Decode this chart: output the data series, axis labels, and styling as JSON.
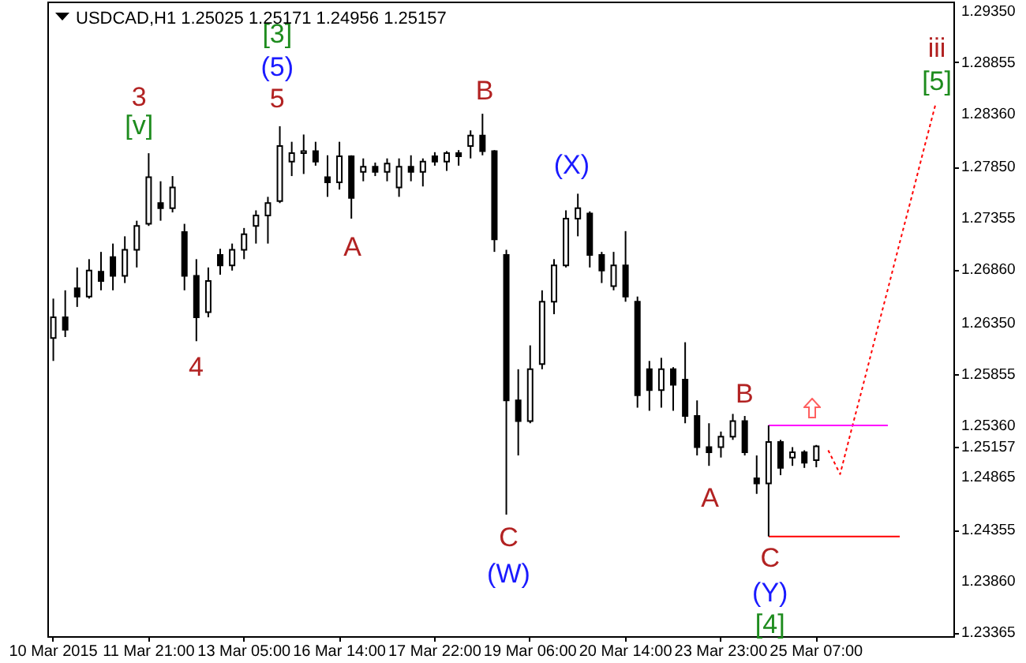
{
  "chart_data": {
    "type": "candlestick",
    "title": "USDCAD,H1  1.25025 1.25171 1.24956 1.25157",
    "color": "#000000",
    "categories": [
      "10 Mar 2015",
      null,
      null,
      null,
      null,
      null,
      null,
      null,
      "11 Mar 21:00",
      null,
      null,
      null,
      null,
      null,
      null,
      null,
      "13 Mar 05:00",
      null,
      null,
      null,
      null,
      null,
      null,
      null,
      "16 Mar 14:00",
      null,
      null,
      null,
      null,
      null,
      null,
      null,
      "17 Mar 22:00",
      null,
      null,
      null,
      null,
      null,
      null,
      null,
      "19 Mar 06:00",
      null,
      null,
      null,
      null,
      null,
      null,
      null,
      "20 Mar 14:00",
      null,
      null,
      null,
      null,
      null,
      null,
      null,
      "23 Mar 23:00",
      null,
      null,
      null,
      null,
      null,
      null,
      null,
      "25 Mar 07:00",
      null,
      null,
      null,
      null,
      null,
      null,
      null,
      null,
      null,
      null,
      null
    ],
    "ohlc": [
      [
        1.262,
        1.2658,
        1.2598,
        1.264
      ],
      [
        1.264,
        1.2666,
        1.2621,
        1.2628
      ],
      [
        1.2668,
        1.2688,
        1.265,
        1.266
      ],
      [
        1.266,
        1.2696,
        1.2658,
        1.2685
      ],
      [
        1.2684,
        1.2703,
        1.2666,
        1.2675
      ],
      [
        1.2698,
        1.2711,
        1.2666,
        1.268
      ],
      [
        1.268,
        1.2718,
        1.2673,
        1.2705
      ],
      [
        1.2705,
        1.2733,
        1.2688,
        1.2728
      ],
      [
        1.273,
        1.2798,
        1.2728,
        1.2775
      ],
      [
        1.275,
        1.2771,
        1.2733,
        1.2745
      ],
      [
        1.2745,
        1.2776,
        1.2741,
        1.2765
      ],
      [
        1.2722,
        1.273,
        1.2666,
        1.268
      ],
      [
        1.268,
        1.2696,
        1.2617,
        1.264
      ],
      [
        1.2645,
        1.2688,
        1.264,
        1.2675
      ],
      [
        1.27,
        1.2706,
        1.2681,
        1.269
      ],
      [
        1.269,
        1.2711,
        1.2685,
        1.2705
      ],
      [
        1.2705,
        1.2726,
        1.2696,
        1.272
      ],
      [
        1.2728,
        1.2743,
        1.2711,
        1.2738
      ],
      [
        1.2738,
        1.2756,
        1.2711,
        1.275
      ],
      [
        1.2752,
        1.2824,
        1.275,
        1.2805
      ],
      [
        1.279,
        1.2809,
        1.2776,
        1.2798
      ],
      [
        1.2798,
        1.2816,
        1.2778,
        1.28
      ],
      [
        1.28,
        1.2809,
        1.2786,
        1.279
      ],
      [
        1.2775,
        1.2796,
        1.2756,
        1.277
      ],
      [
        1.277,
        1.2809,
        1.2763,
        1.2795
      ],
      [
        1.2795,
        1.2796,
        1.2735,
        1.2755
      ],
      [
        1.278,
        1.2793,
        1.2771,
        1.2785
      ],
      [
        1.2785,
        1.2789,
        1.2776,
        1.278
      ],
      [
        1.278,
        1.2793,
        1.2771,
        1.2788
      ],
      [
        1.2765,
        1.2793,
        1.2756,
        1.2785
      ],
      [
        1.2785,
        1.2796,
        1.2771,
        1.278
      ],
      [
        1.278,
        1.2793,
        1.2766,
        1.279
      ],
      [
        1.2795,
        1.2799,
        1.2786,
        1.279
      ],
      [
        1.279,
        1.28,
        1.2781,
        1.2798
      ],
      [
        1.2798,
        1.2801,
        1.2786,
        1.2795
      ],
      [
        1.2805,
        1.282,
        1.2793,
        1.2815
      ],
      [
        1.2815,
        1.2836,
        1.2796,
        1.28
      ],
      [
        1.28,
        1.2801,
        1.2703,
        1.2715
      ],
      [
        1.27,
        1.2705,
        1.245,
        1.256
      ],
      [
        1.256,
        1.259,
        1.2507,
        1.254
      ],
      [
        1.254,
        1.2613,
        1.2538,
        1.259
      ],
      [
        1.2595,
        1.2666,
        1.259,
        1.2655
      ],
      [
        1.2655,
        1.2696,
        1.2643,
        1.269
      ],
      [
        1.269,
        1.2743,
        1.2688,
        1.2735
      ],
      [
        1.2735,
        1.2759,
        1.2718,
        1.2745
      ],
      [
        1.274,
        1.2742,
        1.2688,
        1.27
      ],
      [
        1.27,
        1.2703,
        1.2673,
        1.2685
      ],
      [
        1.267,
        1.2703,
        1.2666,
        1.269
      ],
      [
        1.269,
        1.2723,
        1.2655,
        1.266
      ],
      [
        1.2655,
        1.266,
        1.2553,
        1.2565
      ],
      [
        1.259,
        1.2598,
        1.255,
        1.257
      ],
      [
        1.257,
        1.2601,
        1.2553,
        1.259
      ],
      [
        1.259,
        1.2592,
        1.255,
        1.2575
      ],
      [
        1.258,
        1.2616,
        1.2538,
        1.2545
      ],
      [
        1.2545,
        1.256,
        1.2507,
        1.2515
      ],
      [
        1.2515,
        1.2538,
        1.2497,
        1.251
      ],
      [
        1.2515,
        1.253,
        1.2505,
        1.2525
      ],
      [
        1.2525,
        1.2547,
        1.2522,
        1.254
      ],
      [
        1.254,
        1.2545,
        1.2507,
        1.251
      ],
      [
        1.2485,
        1.2507,
        1.247,
        1.248
      ],
      [
        1.248,
        1.2536,
        1.2429,
        1.252
      ],
      [
        1.252,
        1.2522,
        1.2488,
        1.2495
      ],
      [
        1.2505,
        1.2515,
        1.2497,
        1.251
      ],
      [
        1.251,
        1.2512,
        1.2495,
        1.25
      ],
      [
        1.25025,
        1.25171,
        1.24956,
        1.25157
      ],
      null,
      null,
      null,
      null,
      null,
      null,
      null,
      null,
      null,
      null,
      null
    ],
    "series": [
      {
        "type": "line",
        "color": "#ff0000",
        "line_style": "dotted",
        "values": [
          null,
          null,
          null,
          null,
          null,
          null,
          null,
          null,
          null,
          null,
          null,
          null,
          null,
          null,
          null,
          null,
          null,
          null,
          null,
          null,
          null,
          null,
          null,
          null,
          null,
          null,
          null,
          null,
          null,
          null,
          null,
          null,
          null,
          null,
          null,
          null,
          null,
          null,
          null,
          null,
          null,
          null,
          null,
          null,
          null,
          null,
          null,
          null,
          null,
          null,
          null,
          null,
          null,
          null,
          null,
          null,
          null,
          null,
          null,
          null,
          null,
          null,
          null,
          null,
          null,
          1.2512,
          1.2489,
          1.2534,
          1.2578,
          1.2623,
          1.2667,
          1.2712,
          1.2756,
          1.2801,
          1.2845,
          null
        ]
      },
      {
        "type": "line",
        "color": "#ff00ff",
        "values": [
          null,
          null,
          null,
          null,
          null,
          null,
          null,
          null,
          null,
          null,
          null,
          null,
          null,
          null,
          null,
          null,
          null,
          null,
          null,
          null,
          null,
          null,
          null,
          null,
          null,
          null,
          null,
          null,
          null,
          null,
          null,
          null,
          null,
          null,
          null,
          null,
          null,
          null,
          null,
          null,
          null,
          null,
          null,
          null,
          null,
          null,
          null,
          null,
          null,
          null,
          null,
          null,
          null,
          null,
          null,
          null,
          null,
          null,
          null,
          null,
          1.2536,
          1.2536,
          1.2536,
          1.2536,
          1.2536,
          1.2536,
          1.2536,
          1.2536,
          1.2536,
          1.2536,
          1.2536,
          null,
          null,
          null,
          null,
          null
        ]
      },
      {
        "type": "line",
        "color": "#ff0000",
        "values": [
          null,
          null,
          null,
          null,
          null,
          null,
          null,
          null,
          null,
          null,
          null,
          null,
          null,
          null,
          null,
          null,
          null,
          null,
          null,
          null,
          null,
          null,
          null,
          null,
          null,
          null,
          null,
          null,
          null,
          null,
          null,
          null,
          null,
          null,
          null,
          null,
          null,
          null,
          null,
          null,
          null,
          null,
          null,
          null,
          null,
          null,
          null,
          null,
          null,
          null,
          null,
          null,
          null,
          null,
          null,
          null,
          null,
          null,
          null,
          null,
          1.2429,
          1.2429,
          1.2429,
          1.2429,
          1.2429,
          1.2429,
          1.2429,
          1.2429,
          1.2429,
          1.2429,
          1.2429,
          1.2429,
          null,
          null,
          null,
          null
        ]
      }
    ],
    "ylim": [
      1.2333,
      1.2944
    ],
    "yticks": [
      {
        "value": 1.2935,
        "label": "1.29350"
      },
      1.28855,
      {
        "value": 1.2836,
        "label": "1.28360"
      },
      {
        "value": 1.2785,
        "label": "1.27850"
      },
      1.27355,
      {
        "value": 1.2686,
        "label": "1.26860"
      },
      {
        "value": 1.2635,
        "label": "1.26350"
      },
      1.25855,
      {
        "value": 1.2536,
        "label": "1.25360"
      },
      1.25157,
      1.24865,
      1.24355,
      {
        "value": 1.2386,
        "label": "1.23860"
      },
      1.23365
    ],
    "annotations": [
      "3",
      "[v]",
      "4",
      "[3]",
      "(5)",
      "5",
      "A",
      "B",
      "C",
      "(W)",
      "(X)",
      "A",
      "B",
      "C",
      "(Y)",
      "[4]",
      "iii",
      "[5]"
    ]
  }
}
